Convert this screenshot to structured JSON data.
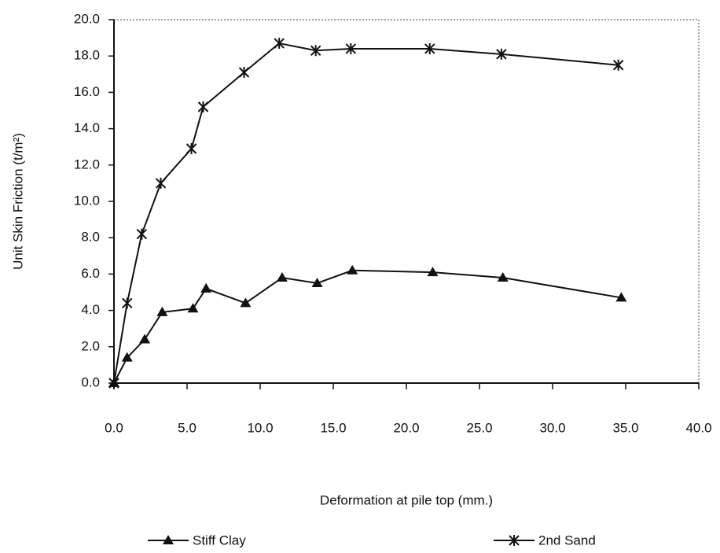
{
  "chart_data": {
    "type": "line",
    "xlabel": "Deformation at pile top (mm.)",
    "ylabel": "Unit Skin Friction (t/m²)",
    "xlim": [
      0,
      40
    ],
    "ylim": [
      0,
      20
    ],
    "xticks": [
      {
        "value": 0,
        "label": "0.0"
      },
      {
        "value": 5,
        "label": "5.0"
      },
      {
        "value": 10,
        "label": "10.0"
      },
      {
        "value": 15,
        "label": "15.0"
      },
      {
        "value": 20,
        "label": "20.0"
      },
      {
        "value": 25,
        "label": "25.0"
      },
      {
        "value": 30,
        "label": "30.0"
      },
      {
        "value": 35,
        "label": "35.0"
      },
      {
        "value": 40,
        "label": "40.0"
      }
    ],
    "yticks": [
      {
        "value": 0,
        "label": "0.0"
      },
      {
        "value": 2,
        "label": "2.0"
      },
      {
        "value": 4,
        "label": "4.0"
      },
      {
        "value": 6,
        "label": "6.0"
      },
      {
        "value": 8,
        "label": "8.0"
      },
      {
        "value": 10,
        "label": "10.0"
      },
      {
        "value": 12,
        "label": "12.0"
      },
      {
        "value": 14,
        "label": "14.0"
      },
      {
        "value": 16,
        "label": "16.0"
      },
      {
        "value": 18,
        "label": "18.0"
      },
      {
        "value": 20,
        "label": "20.0"
      }
    ],
    "series": [
      {
        "name": "Stiff Clay",
        "color": "#111111",
        "marker": "triangle",
        "x": [
          0,
          0.9,
          2.1,
          3.3,
          5.4,
          6.3,
          9.0,
          11.5,
          13.9,
          16.3,
          21.8,
          26.6,
          34.7
        ],
        "values": [
          0,
          1.4,
          2.4,
          3.9,
          4.1,
          5.2,
          4.4,
          5.8,
          5.5,
          6.2,
          6.1,
          5.8,
          4.7
        ]
      },
      {
        "name": "2nd Sand",
        "color": "#111111",
        "marker": "asterisk",
        "x": [
          0,
          0.9,
          1.9,
          3.2,
          5.3,
          6.1,
          8.9,
          11.3,
          13.8,
          16.2,
          21.6,
          26.5,
          34.5
        ],
        "values": [
          0,
          4.4,
          8.2,
          11.0,
          12.9,
          15.2,
          17.1,
          18.7,
          18.3,
          18.4,
          18.4,
          18.1,
          17.5
        ]
      }
    ]
  }
}
